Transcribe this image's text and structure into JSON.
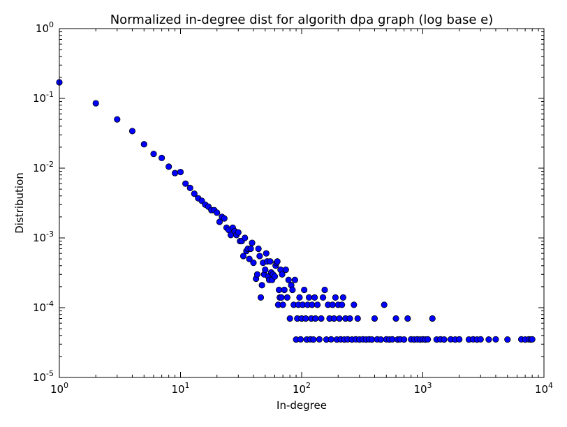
{
  "chart_data": {
    "type": "scatter",
    "title": "Normalized in-degree dist for algorith dpa graph (log base e)",
    "xlabel": "In-degree",
    "ylabel": "Distribution",
    "xscale": "log",
    "yscale": "log",
    "xlim": [
      1,
      10000
    ],
    "ylim": [
      1e-05,
      1
    ],
    "grid": false,
    "legend": "none",
    "marker_color": "#0000ff",
    "marker_edge_color": "#000000",
    "x_ticks": [
      {
        "base": "10",
        "exp": "0"
      },
      {
        "base": "10",
        "exp": "1"
      },
      {
        "base": "10",
        "exp": "2"
      },
      {
        "base": "10",
        "exp": "3"
      },
      {
        "base": "10",
        "exp": "4"
      }
    ],
    "y_ticks": [
      {
        "base": "10",
        "exp": "-5"
      },
      {
        "base": "10",
        "exp": "-4"
      },
      {
        "base": "10",
        "exp": "-3"
      },
      {
        "base": "10",
        "exp": "-2"
      },
      {
        "base": "10",
        "exp": "-1"
      },
      {
        "base": "10",
        "exp": "0"
      }
    ],
    "points": [
      [
        1,
        0.17
      ],
      [
        2,
        0.085
      ],
      [
        3,
        0.05
      ],
      [
        4,
        0.034
      ],
      [
        5,
        0.022
      ],
      [
        6,
        0.016
      ],
      [
        7,
        0.014
      ],
      [
        8,
        0.0105
      ],
      [
        9,
        0.0085
      ],
      [
        10,
        0.0088
      ],
      [
        11,
        0.006
      ],
      [
        12,
        0.0052
      ],
      [
        13,
        0.0043
      ],
      [
        14,
        0.0037
      ],
      [
        15,
        0.0034
      ],
      [
        16,
        0.003
      ],
      [
        17,
        0.0028
      ],
      [
        18,
        0.0025
      ],
      [
        19,
        0.0025
      ],
      [
        20,
        0.0023
      ],
      [
        21,
        0.0017
      ],
      [
        22,
        0.002
      ],
      [
        23,
        0.0019
      ],
      [
        24,
        0.0014
      ],
      [
        25,
        0.0013
      ],
      [
        26,
        0.0011
      ],
      [
        27,
        0.0014
      ],
      [
        28,
        0.00125
      ],
      [
        29,
        0.0011
      ],
      [
        30,
        0.0012
      ],
      [
        31,
        0.0009
      ],
      [
        32,
        0.0009
      ],
      [
        33,
        0.00055
      ],
      [
        34,
        0.001
      ],
      [
        35,
        0.00065
      ],
      [
        36,
        0.0007
      ],
      [
        37,
        0.0005
      ],
      [
        38,
        0.0007
      ],
      [
        39,
        0.00085
      ],
      [
        40,
        0.00044
      ],
      [
        42,
        0.00026
      ],
      [
        43,
        0.0003
      ],
      [
        44,
        0.0007
      ],
      [
        45,
        0.00055
      ],
      [
        46,
        0.00014
      ],
      [
        47,
        0.00021
      ],
      [
        48,
        0.00044
      ],
      [
        49,
        0.0003
      ],
      [
        50,
        0.00035
      ],
      [
        51,
        0.0006
      ],
      [
        52,
        0.00046
      ],
      [
        53,
        0.00028
      ],
      [
        54,
        0.00025
      ],
      [
        55,
        0.00046
      ],
      [
        56,
        0.00032
      ],
      [
        57,
        0.00025
      ],
      [
        58,
        0.0003
      ],
      [
        60,
        0.00028
      ],
      [
        61,
        0.0004
      ],
      [
        62,
        0.00044
      ],
      [
        63,
        0.00046
      ],
      [
        64,
        0.00011
      ],
      [
        65,
        0.00018
      ],
      [
        66,
        0.00014
      ],
      [
        67,
        0.00035
      ],
      [
        68,
        0.00014
      ],
      [
        69,
        0.0003
      ],
      [
        70,
        0.00011
      ],
      [
        72,
        0.00018
      ],
      [
        74,
        0.00035
      ],
      [
        76,
        0.00014
      ],
      [
        78,
        0.00025
      ],
      [
        80,
        7e-05
      ],
      [
        82,
        0.00021
      ],
      [
        84,
        0.00018
      ],
      [
        86,
        0.00011
      ],
      [
        88,
        0.00025
      ],
      [
        90,
        3.5e-05
      ],
      [
        92,
        7e-05
      ],
      [
        94,
        0.00011
      ],
      [
        96,
        0.00014
      ],
      [
        98,
        3.52e-05
      ],
      [
        100,
        7e-05
      ],
      [
        102,
        0.00011
      ],
      [
        105,
        0.00018
      ],
      [
        108,
        7e-05
      ],
      [
        110,
        3.5e-05
      ],
      [
        112,
        0.00011
      ],
      [
        115,
        0.00014
      ],
      [
        118,
        3.52e-05
      ],
      [
        120,
        7e-05
      ],
      [
        122,
        0.00011
      ],
      [
        125,
        3.5e-05
      ],
      [
        128,
        0.00014
      ],
      [
        130,
        7e-05
      ],
      [
        135,
        0.00011
      ],
      [
        140,
        3.52e-05
      ],
      [
        145,
        7e-05
      ],
      [
        150,
        0.00014
      ],
      [
        155,
        0.00018
      ],
      [
        160,
        3.5e-05
      ],
      [
        165,
        0.00011
      ],
      [
        170,
        7e-05
      ],
      [
        175,
        3.52e-05
      ],
      [
        180,
        0.00011
      ],
      [
        185,
        7e-05
      ],
      [
        190,
        0.00014
      ],
      [
        195,
        3.5e-05
      ],
      [
        200,
        0.00011
      ],
      [
        205,
        7e-05
      ],
      [
        210,
        3.52e-05
      ],
      [
        215,
        0.00011
      ],
      [
        220,
        0.00014
      ],
      [
        225,
        3.5e-05
      ],
      [
        230,
        7e-05
      ],
      [
        240,
        3.52e-05
      ],
      [
        250,
        7e-05
      ],
      [
        260,
        3.5e-05
      ],
      [
        270,
        0.00011
      ],
      [
        280,
        3.52e-05
      ],
      [
        290,
        7e-05
      ],
      [
        300,
        3.5e-05
      ],
      [
        320,
        3.52e-05
      ],
      [
        340,
        3.5e-05
      ],
      [
        360,
        3.52e-05
      ],
      [
        380,
        3.5e-05
      ],
      [
        400,
        7e-05
      ],
      [
        420,
        3.52e-05
      ],
      [
        450,
        3.5e-05
      ],
      [
        480,
        0.00011
      ],
      [
        500,
        3.52e-05
      ],
      [
        530,
        3.5e-05
      ],
      [
        560,
        3.52e-05
      ],
      [
        600,
        7e-05
      ],
      [
        620,
        3.5e-05
      ],
      [
        650,
        3.52e-05
      ],
      [
        700,
        3.5e-05
      ],
      [
        750,
        7e-05
      ],
      [
        800,
        3.52e-05
      ],
      [
        850,
        3.5e-05
      ],
      [
        900,
        3.52e-05
      ],
      [
        950,
        3.5e-05
      ],
      [
        1000,
        3.52e-05
      ],
      [
        1050,
        3.5e-05
      ],
      [
        1100,
        3.52e-05
      ],
      [
        1200,
        7e-05
      ],
      [
        1300,
        3.5e-05
      ],
      [
        1400,
        3.52e-05
      ],
      [
        1500,
        3.5e-05
      ],
      [
        1700,
        3.52e-05
      ],
      [
        1850,
        3.5e-05
      ],
      [
        2000,
        3.52e-05
      ],
      [
        2400,
        3.5e-05
      ],
      [
        2600,
        3.52e-05
      ],
      [
        2800,
        3.5e-05
      ],
      [
        3000,
        3.52e-05
      ],
      [
        3500,
        3.5e-05
      ],
      [
        4000,
        3.52e-05
      ],
      [
        5000,
        3.5e-05
      ],
      [
        6500,
        3.52e-05
      ],
      [
        7000,
        3.5e-05
      ],
      [
        7500,
        3.52e-05
      ],
      [
        7800,
        3.5e-05
      ],
      [
        8000,
        3.52e-05
      ]
    ]
  }
}
